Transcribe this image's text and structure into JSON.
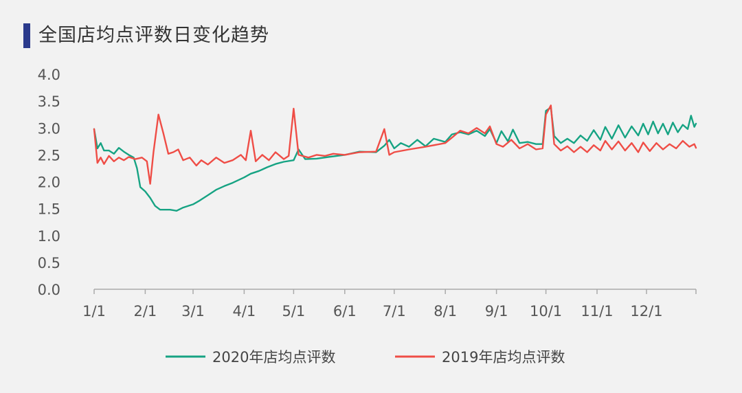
{
  "title": "全国店均点评数日变化趋势",
  "colors": {
    "accent": "#2b3a8c",
    "series_2020": "#16a383",
    "series_2019": "#ef4d46"
  },
  "chart_data": {
    "type": "line",
    "title": "全国店均点评数日变化趋势",
    "xlabel": "",
    "ylabel": "",
    "ylim": [
      0.0,
      4.0
    ],
    "yticks": [
      "0.0",
      "0.5",
      "1.0",
      "1.5",
      "2.0",
      "2.5",
      "3.0",
      "3.5",
      "4.0"
    ],
    "xticks": [
      "1/1",
      "2/1",
      "3/1",
      "4/1",
      "5/1",
      "6/1",
      "7/1",
      "8/1",
      "9/1",
      "10/1",
      "11/1",
      "12/1"
    ],
    "legend_position": "bottom",
    "grid": false,
    "series": [
      {
        "name": "2020年店均点评数",
        "color": "#16a383",
        "points": [
          [
            "1/1",
            2.98
          ],
          [
            "1/3",
            2.62
          ],
          [
            "1/5",
            2.72
          ],
          [
            "1/7",
            2.58
          ],
          [
            "1/10",
            2.58
          ],
          [
            "1/13",
            2.52
          ],
          [
            "1/16",
            2.63
          ],
          [
            "1/19",
            2.56
          ],
          [
            "1/22",
            2.5
          ],
          [
            "1/25",
            2.45
          ],
          [
            "1/27",
            2.25
          ],
          [
            "1/29",
            1.9
          ],
          [
            "2/1",
            1.82
          ],
          [
            "2/4",
            1.7
          ],
          [
            "2/7",
            1.55
          ],
          [
            "2/10",
            1.48
          ],
          [
            "2/13",
            1.48
          ],
          [
            "2/16",
            1.48
          ],
          [
            "2/20",
            1.46
          ],
          [
            "2/24",
            1.52
          ],
          [
            "3/1",
            1.58
          ],
          [
            "3/5",
            1.65
          ],
          [
            "3/10",
            1.75
          ],
          [
            "3/15",
            1.85
          ],
          [
            "3/20",
            1.92
          ],
          [
            "3/25",
            1.98
          ],
          [
            "4/1",
            2.08
          ],
          [
            "4/5",
            2.15
          ],
          [
            "4/10",
            2.2
          ],
          [
            "4/15",
            2.27
          ],
          [
            "4/20",
            2.33
          ],
          [
            "4/25",
            2.37
          ],
          [
            "5/1",
            2.4
          ],
          [
            "5/4",
            2.6
          ],
          [
            "5/8",
            2.42
          ],
          [
            "5/15",
            2.43
          ],
          [
            "5/22",
            2.46
          ],
          [
            "6/1",
            2.5
          ],
          [
            "6/10",
            2.56
          ],
          [
            "6/20",
            2.55
          ],
          [
            "6/25",
            2.67
          ],
          [
            "6/28",
            2.78
          ],
          [
            "7/1",
            2.62
          ],
          [
            "7/5",
            2.72
          ],
          [
            "7/10",
            2.65
          ],
          [
            "7/15",
            2.78
          ],
          [
            "7/20",
            2.66
          ],
          [
            "7/25",
            2.8
          ],
          [
            "8/1",
            2.74
          ],
          [
            "8/5",
            2.88
          ],
          [
            "8/10",
            2.92
          ],
          [
            "8/15",
            2.88
          ],
          [
            "8/20",
            2.95
          ],
          [
            "8/25",
            2.85
          ],
          [
            "8/28",
            2.98
          ],
          [
            "9/1",
            2.72
          ],
          [
            "9/4",
            2.94
          ],
          [
            "9/8",
            2.75
          ],
          [
            "9/11",
            2.97
          ],
          [
            "9/15",
            2.72
          ],
          [
            "9/20",
            2.74
          ],
          [
            "9/25",
            2.7
          ],
          [
            "9/29",
            2.7
          ],
          [
            "10/1",
            3.32
          ],
          [
            "10/4",
            3.38
          ],
          [
            "10/6",
            2.85
          ],
          [
            "10/10",
            2.72
          ],
          [
            "10/14",
            2.8
          ],
          [
            "10/18",
            2.72
          ],
          [
            "10/22",
            2.86
          ],
          [
            "10/26",
            2.76
          ],
          [
            "10/30",
            2.96
          ],
          [
            "11/3",
            2.78
          ],
          [
            "11/6",
            3.02
          ],
          [
            "11/10",
            2.8
          ],
          [
            "11/14",
            3.05
          ],
          [
            "11/18",
            2.82
          ],
          [
            "11/22",
            3.03
          ],
          [
            "11/26",
            2.86
          ],
          [
            "11/29",
            3.08
          ],
          [
            "12/2",
            2.88
          ],
          [
            "12/5",
            3.12
          ],
          [
            "12/8",
            2.9
          ],
          [
            "12/11",
            3.08
          ],
          [
            "12/14",
            2.88
          ],
          [
            "12/17",
            3.1
          ],
          [
            "12/20",
            2.92
          ],
          [
            "12/23",
            3.06
          ],
          [
            "12/26",
            2.98
          ],
          [
            "12/28",
            3.23
          ],
          [
            "12/30",
            3.02
          ],
          [
            "12/31",
            3.08
          ]
        ]
      },
      {
        "name": "2019年店均点评数",
        "color": "#ef4d46",
        "points": [
          [
            "1/1",
            2.98
          ],
          [
            "1/3",
            2.35
          ],
          [
            "1/5",
            2.45
          ],
          [
            "1/7",
            2.33
          ],
          [
            "1/10",
            2.48
          ],
          [
            "1/13",
            2.38
          ],
          [
            "1/16",
            2.45
          ],
          [
            "1/19",
            2.4
          ],
          [
            "1/22",
            2.46
          ],
          [
            "1/26",
            2.42
          ],
          [
            "1/30",
            2.45
          ],
          [
            "2/2",
            2.38
          ],
          [
            "2/4",
            1.96
          ],
          [
            "2/6",
            2.55
          ],
          [
            "2/9",
            3.25
          ],
          [
            "2/12",
            2.9
          ],
          [
            "2/15",
            2.52
          ],
          [
            "2/18",
            2.55
          ],
          [
            "2/21",
            2.6
          ],
          [
            "2/24",
            2.4
          ],
          [
            "2/28",
            2.45
          ],
          [
            "3/3",
            2.3
          ],
          [
            "3/6",
            2.4
          ],
          [
            "3/10",
            2.32
          ],
          [
            "3/15",
            2.45
          ],
          [
            "3/20",
            2.35
          ],
          [
            "3/25",
            2.4
          ],
          [
            "3/30",
            2.5
          ],
          [
            "4/2",
            2.4
          ],
          [
            "4/5",
            2.95
          ],
          [
            "4/8",
            2.38
          ],
          [
            "4/12",
            2.5
          ],
          [
            "4/16",
            2.4
          ],
          [
            "4/20",
            2.55
          ],
          [
            "4/25",
            2.42
          ],
          [
            "4/28",
            2.48
          ],
          [
            "5/1",
            3.36
          ],
          [
            "5/4",
            2.5
          ],
          [
            "5/10",
            2.45
          ],
          [
            "5/15",
            2.5
          ],
          [
            "5/20",
            2.48
          ],
          [
            "5/25",
            2.52
          ],
          [
            "6/1",
            2.5
          ],
          [
            "6/10",
            2.55
          ],
          [
            "6/20",
            2.56
          ],
          [
            "6/25",
            2.98
          ],
          [
            "6/28",
            2.5
          ],
          [
            "7/1",
            2.55
          ],
          [
            "7/10",
            2.6
          ],
          [
            "7/20",
            2.65
          ],
          [
            "8/1",
            2.72
          ],
          [
            "8/5",
            2.82
          ],
          [
            "8/10",
            2.95
          ],
          [
            "8/15",
            2.9
          ],
          [
            "8/20",
            3.0
          ],
          [
            "8/25",
            2.9
          ],
          [
            "8/28",
            3.03
          ],
          [
            "9/1",
            2.7
          ],
          [
            "9/5",
            2.65
          ],
          [
            "9/10",
            2.78
          ],
          [
            "9/15",
            2.62
          ],
          [
            "9/20",
            2.7
          ],
          [
            "9/25",
            2.6
          ],
          [
            "9/29",
            2.62
          ],
          [
            "10/1",
            3.25
          ],
          [
            "10/4",
            3.42
          ],
          [
            "10/6",
            2.7
          ],
          [
            "10/10",
            2.58
          ],
          [
            "10/14",
            2.66
          ],
          [
            "10/18",
            2.55
          ],
          [
            "10/22",
            2.65
          ],
          [
            "10/26",
            2.55
          ],
          [
            "10/30",
            2.68
          ],
          [
            "11/3",
            2.58
          ],
          [
            "11/6",
            2.76
          ],
          [
            "11/10",
            2.6
          ],
          [
            "11/14",
            2.75
          ],
          [
            "11/18",
            2.58
          ],
          [
            "11/22",
            2.72
          ],
          [
            "11/26",
            2.55
          ],
          [
            "11/29",
            2.73
          ],
          [
            "12/3",
            2.57
          ],
          [
            "12/7",
            2.72
          ],
          [
            "12/11",
            2.6
          ],
          [
            "12/15",
            2.7
          ],
          [
            "12/19",
            2.62
          ],
          [
            "12/23",
            2.76
          ],
          [
            "12/27",
            2.65
          ],
          [
            "12/30",
            2.7
          ],
          [
            "12/31",
            2.63
          ]
        ]
      }
    ]
  }
}
